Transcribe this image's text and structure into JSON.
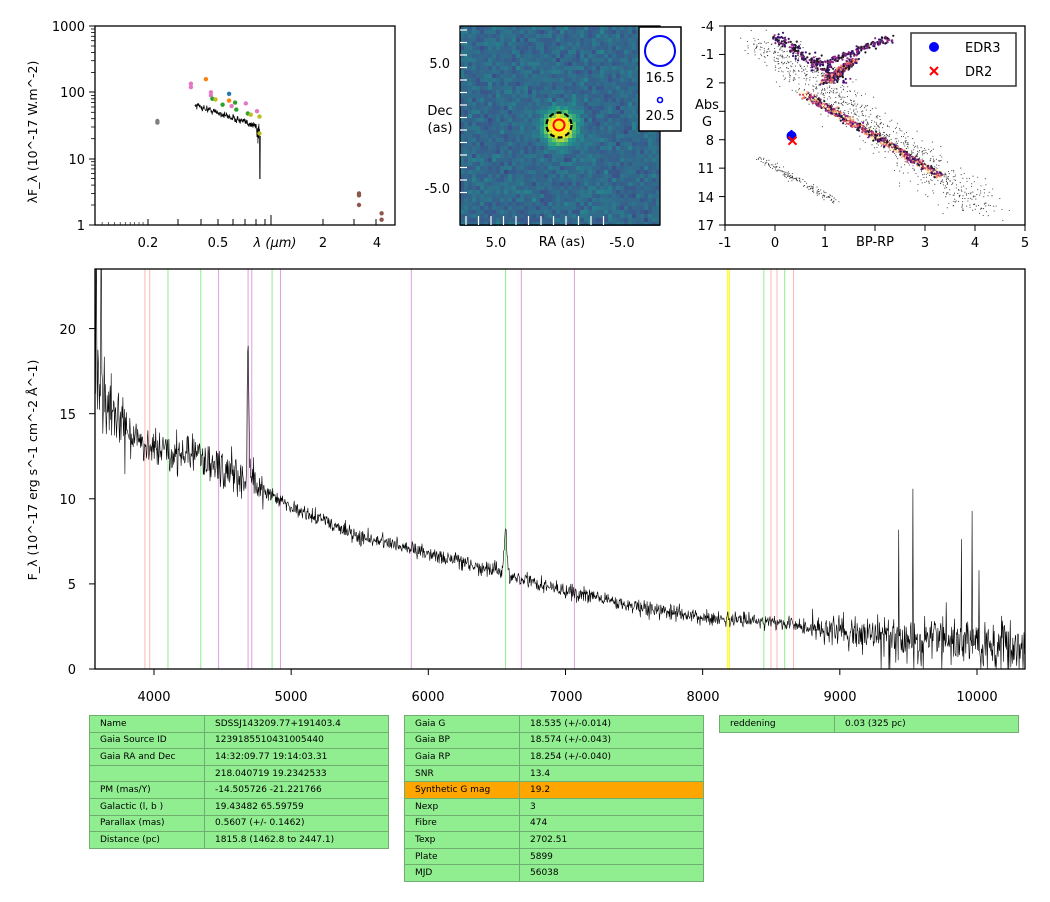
{
  "sed": {
    "ylabel": "λF_λ (10^-17 W.m^-2)",
    "xlabel": "λ (μm)",
    "x_ticks": [
      "0.2",
      "0.5",
      "2",
      "4"
    ],
    "y_ticks": [
      "1",
      "10",
      "100",
      "1000"
    ]
  },
  "image": {
    "xlabel": "RA (as)",
    "ylabel": [
      "Dec",
      "(as)"
    ],
    "x_ticks": [
      "5.0",
      "-5.0"
    ],
    "y_ticks": [
      "5.0",
      "-5.0"
    ],
    "legend": [
      "16.5",
      "20.5"
    ]
  },
  "hrd": {
    "xlabel": "BP-RP",
    "ylabel": [
      "Abs",
      "G"
    ],
    "x_ticks": [
      "-1",
      "0",
      "1",
      "3",
      "4",
      "5"
    ],
    "y_ticks": [
      "-4",
      "-1",
      "2",
      "8",
      "11",
      "14",
      "17"
    ],
    "legend": [
      "EDR3",
      "DR2"
    ]
  },
  "spectrum": {
    "ylabel": "F_λ (10^-17 erg s^-1 cm^-2 Å^-1)",
    "x_ticks": [
      "4000",
      "5000",
      "6000",
      "7000",
      "8000",
      "9000",
      "10000"
    ],
    "y_ticks": [
      "0",
      "5",
      "10",
      "15",
      "20"
    ]
  },
  "tables": {
    "t1": [
      [
        "Name",
        "SDSSJ143209.77+191403.4"
      ],
      [
        "Gaia Source ID",
        "1239185510431005440"
      ],
      [
        "Gaia RA and Dec",
        "14:32:09.77     19:14:03.31"
      ],
      [
        "",
        "218.040719     19.2342533"
      ],
      [
        "PM (mas/Y)",
        "-14.505726     -21.221766"
      ],
      [
        "Galactic (l, b )",
        "19.43482     65.59759"
      ],
      [
        "Parallax (mas)",
        "0.5607 (+/- 0.1462)"
      ],
      [
        "Distance (pc)",
        "1815.8 (1462.8 to 2447.1)"
      ]
    ],
    "t2": [
      [
        "Gaia G",
        "18.535 (+/-0.014)"
      ],
      [
        "Gaia BP",
        "18.574 (+/-0.043)"
      ],
      [
        "Gaia RP",
        "18.254 (+/-0.040)"
      ],
      [
        "SNR",
        "13.4"
      ],
      [
        "Synthetic G mag",
        "19.2"
      ],
      [
        "Nexp",
        "3"
      ],
      [
        "Fibre",
        "474"
      ],
      [
        "Texp",
        "2702.51"
      ],
      [
        "Plate",
        "5899"
      ],
      [
        "MJD",
        "56038"
      ]
    ],
    "t3": [
      [
        "reddening",
        "0.03 (325 pc)"
      ]
    ]
  },
  "chart_data": [
    {
      "type": "scatter",
      "panel": "SED",
      "xlabel": "λ (μm)",
      "ylabel": "λF_λ (10^-17 W.m^-2)",
      "xscale": "log",
      "yscale": "log",
      "xlim": [
        0.1,
        5.5
      ],
      "ylim": [
        1,
        1000
      ],
      "points": [
        {
          "x": 0.23,
          "y": 35,
          "color": "#7f7f7f"
        },
        {
          "x": 0.23,
          "y": 37,
          "color": "#7f7f7f"
        },
        {
          "x": 0.36,
          "y": 120,
          "color": "#e377c2"
        },
        {
          "x": 0.36,
          "y": 135,
          "color": "#e377c2"
        },
        {
          "x": 0.44,
          "y": 158,
          "color": "#ff7f0e"
        },
        {
          "x": 0.47,
          "y": 100,
          "color": "#e377c2"
        },
        {
          "x": 0.47,
          "y": 90,
          "color": "#e377c2"
        },
        {
          "x": 0.48,
          "y": 80,
          "color": "#2ca02c"
        },
        {
          "x": 0.5,
          "y": 78,
          "color": "#bcbd22"
        },
        {
          "x": 0.55,
          "y": 65,
          "color": "#2ca02c"
        },
        {
          "x": 0.6,
          "y": 95,
          "color": "#1f77b4"
        },
        {
          "x": 0.6,
          "y": 75,
          "color": "#ff7f0e"
        },
        {
          "x": 0.62,
          "y": 62,
          "color": "#e377c2"
        },
        {
          "x": 0.65,
          "y": 70,
          "color": "#2ca02c"
        },
        {
          "x": 0.66,
          "y": 55,
          "color": "#2ca02c"
        },
        {
          "x": 0.75,
          "y": 68,
          "color": "#e377c2"
        },
        {
          "x": 0.77,
          "y": 48,
          "color": "#2ca02c"
        },
        {
          "x": 0.8,
          "y": 46,
          "color": "#bcbd22"
        },
        {
          "x": 0.87,
          "y": 52,
          "color": "#e377c2"
        },
        {
          "x": 0.9,
          "y": 43,
          "color": "#bcbd22"
        },
        {
          "x": 0.9,
          "y": 24,
          "color": "#bcbd22"
        },
        {
          "x": 3.4,
          "y": 2.8,
          "color": "#8c564b"
        },
        {
          "x": 3.4,
          "y": 3.0,
          "color": "#8c564b"
        },
        {
          "x": 3.4,
          "y": 2.0,
          "color": "#8c564b"
        },
        {
          "x": 4.6,
          "y": 1.5,
          "color": "#8c564b"
        },
        {
          "x": 4.6,
          "y": 1.2,
          "color": "#8c564b"
        }
      ]
    },
    {
      "type": "heatmap",
      "panel": "Image",
      "xlabel": "RA (as)",
      "ylabel": "Dec (as)",
      "x_ticks": [
        5.0,
        -5.0
      ],
      "y_ticks": [
        5.0,
        -5.0
      ],
      "legend": [
        "16.5",
        "20.5"
      ]
    },
    {
      "type": "scatter",
      "panel": "HRD",
      "xlabel": "BP-RP",
      "ylabel": "Abs G",
      "xlim": [
        -1,
        5
      ],
      "ylim": [
        17,
        -4
      ],
      "series": [
        {
          "name": "EDR3",
          "x": [
            0.33
          ],
          "y": [
            7.6
          ],
          "color": "#0000ff",
          "marker": "o"
        },
        {
          "name": "DR2",
          "x": [
            0.35
          ],
          "y": [
            8.1
          ],
          "color": "#ff0000",
          "marker": "x"
        }
      ]
    },
    {
      "type": "line",
      "panel": "Spectrum",
      "ylabel": "F_λ (10^-17 erg s^-1 cm^-2 Å^-1)",
      "xlim": [
        3570,
        10350
      ],
      "ylim": [
        0,
        23.5
      ],
      "anchors": [
        {
          "x": 3570,
          "y": 17.5
        },
        {
          "x": 3650,
          "y": 16
        },
        {
          "x": 3800,
          "y": 14
        },
        {
          "x": 4000,
          "y": 13
        },
        {
          "x": 4300,
          "y": 12.5
        },
        {
          "x": 4500,
          "y": 11.8
        },
        {
          "x": 4700,
          "y": 11
        },
        {
          "x": 5000,
          "y": 9.5
        },
        {
          "x": 5500,
          "y": 7.8
        },
        {
          "x": 6000,
          "y": 6.8
        },
        {
          "x": 6500,
          "y": 5.7
        },
        {
          "x": 7000,
          "y": 4.6
        },
        {
          "x": 7500,
          "y": 3.7
        },
        {
          "x": 8000,
          "y": 3.0
        },
        {
          "x": 8500,
          "y": 2.7
        },
        {
          "x": 9000,
          "y": 2.2
        },
        {
          "x": 9500,
          "y": 1.8
        },
        {
          "x": 10000,
          "y": 1.5
        },
        {
          "x": 10350,
          "y": 1.3
        }
      ],
      "features": [
        {
          "x": 4686,
          "amp": 8.5,
          "width": 8
        },
        {
          "x": 6563,
          "amp": 2.5,
          "width": 14
        }
      ],
      "lines": [
        {
          "x": 3934,
          "color": "#ffb6b6"
        },
        {
          "x": 3969,
          "color": "#ffb6b6"
        },
        {
          "x": 4102,
          "color": "#90ee90"
        },
        {
          "x": 4341,
          "color": "#90ee90"
        },
        {
          "x": 4471,
          "color": "#dda0dd"
        },
        {
          "x": 4686,
          "color": "#dda0dd"
        },
        {
          "x": 4713,
          "color": "#dda0dd"
        },
        {
          "x": 4861,
          "color": "#90ee90"
        },
        {
          "x": 4922,
          "color": "#dda0dd"
        },
        {
          "x": 5876,
          "color": "#dda0dd"
        },
        {
          "x": 6563,
          "color": "#90ee90"
        },
        {
          "x": 6678,
          "color": "#dda0dd"
        },
        {
          "x": 7065,
          "color": "#dda0dd"
        },
        {
          "x": 8183,
          "color": "#ffff00"
        },
        {
          "x": 8195,
          "color": "#ffff00"
        },
        {
          "x": 8446,
          "color": "#90ee90"
        },
        {
          "x": 8498,
          "color": "#ffb6b6"
        },
        {
          "x": 8542,
          "color": "#ffb6b6"
        },
        {
          "x": 8598,
          "color": "#90ee90"
        },
        {
          "x": 8662,
          "color": "#ffb6b6"
        }
      ]
    }
  ]
}
